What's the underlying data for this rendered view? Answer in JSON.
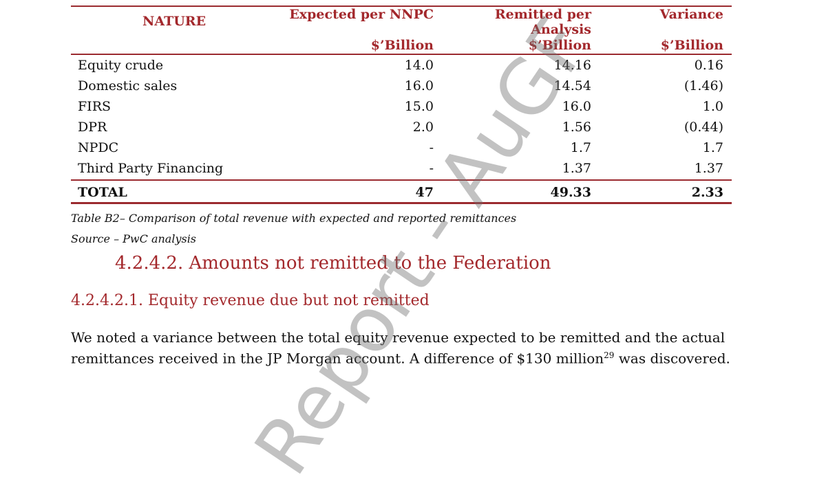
{
  "table": {
    "headers": {
      "nature": "NATURE",
      "expected_line1": "Expected per NNPC",
      "expected_unit": "$’Billion",
      "remitted_line1": "Remitted per",
      "remitted_line2": "Analysis",
      "remitted_unit": "$’Billion",
      "variance_line1": "Variance",
      "variance_unit": "$’Billion"
    },
    "rows": [
      {
        "nature": "Equity crude",
        "expected": "14.0",
        "remitted": "14.16",
        "variance": "0.16"
      },
      {
        "nature": "Domestic sales",
        "expected": "16.0",
        "remitted": "14.54",
        "variance": "(1.46)"
      },
      {
        "nature": "FIRS",
        "expected": "15.0",
        "remitted": "16.0",
        "variance": "1.0"
      },
      {
        "nature": "DPR",
        "expected": "2.0",
        "remitted": "1.56",
        "variance": "(0.44)"
      },
      {
        "nature": "NPDC",
        "expected": "-",
        "remitted": "1.7",
        "variance": "1.7"
      },
      {
        "nature": "Third Party Financing",
        "expected": "-",
        "remitted": "1.37",
        "variance": "1.37"
      }
    ],
    "total": {
      "nature": "TOTAL",
      "expected": "47",
      "remitted": "49.33",
      "variance": "2.33"
    }
  },
  "caption": "Table B2– Comparison of total revenue with expected and reported remittances",
  "source": "Source – PwC analysis",
  "heading_4": "4.2.4.2. Amounts not remitted to the Federation",
  "heading_5": "4.2.4.2.1. Equity revenue due but not remitted",
  "paragraph": {
    "line1": "We noted a variance between the total equity revenue expected to be remitted and the actual",
    "line2_before": "remittances received in the JP Morgan account.  A difference of $130 million",
    "footnote_ref": "29",
    "line2_after": " was discovered."
  },
  "watermark": "Report - AuGF",
  "colors": {
    "accent": "#a3282c",
    "rule": "#9b2a2f",
    "watermark": "#8a8a8a"
  }
}
